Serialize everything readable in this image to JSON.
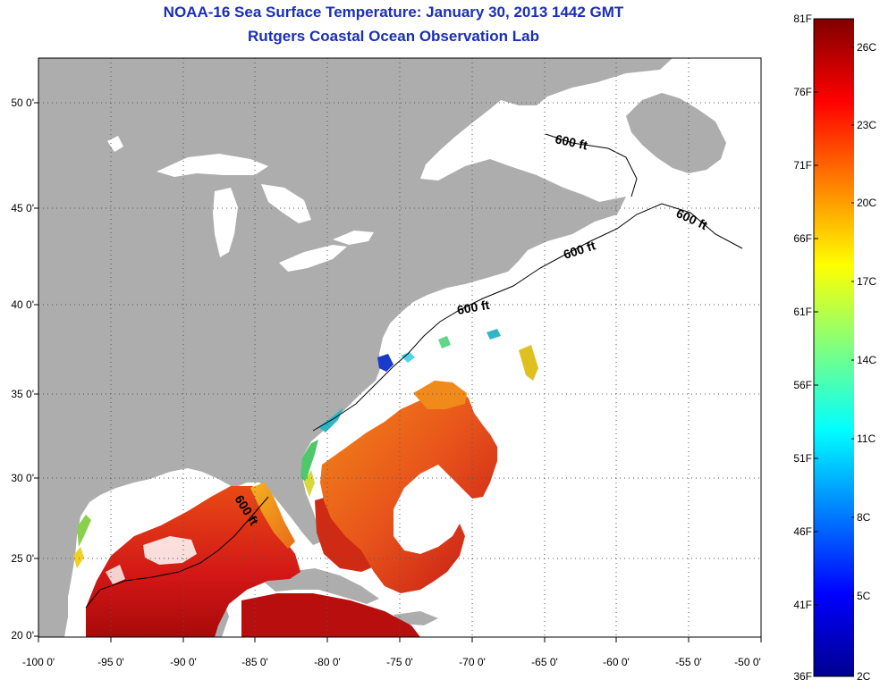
{
  "header": {
    "title": "NOAA-16 Sea Surface Temperature:  January 30, 2013 1442 GMT",
    "subtitle": "Rutgers Coastal Ocean Observation Lab"
  },
  "map": {
    "lat_labels": [
      "50 0'",
      "45 0'",
      "40 0'",
      "35 0'",
      "30 0'",
      "25 0'",
      "20 0'"
    ],
    "lon_labels": [
      "-100 0'",
      "-95 0'",
      "-90 0'",
      "-85 0'",
      "-80 0'",
      "-75 0'",
      "-70 0'",
      "-65 0'",
      "-60 0'",
      "-55 0'",
      "-50 0'"
    ],
    "contour_labels": [
      "600 ft",
      "600 ft",
      "600 ft",
      "600 ft",
      "600 ft"
    ],
    "colors": {
      "land": "#adadad",
      "no_data_water": "#ffffff",
      "title": "#1a2fb5"
    }
  },
  "colorbar": {
    "fahrenheit_labels": [
      "81F",
      "76F",
      "71F",
      "66F",
      "61F",
      "56F",
      "51F",
      "46F",
      "41F",
      "36F"
    ],
    "celsius_labels": [
      "26C",
      "23C",
      "20C",
      "17C",
      "14C",
      "11C",
      "8C",
      "5C",
      "2C"
    ]
  }
}
